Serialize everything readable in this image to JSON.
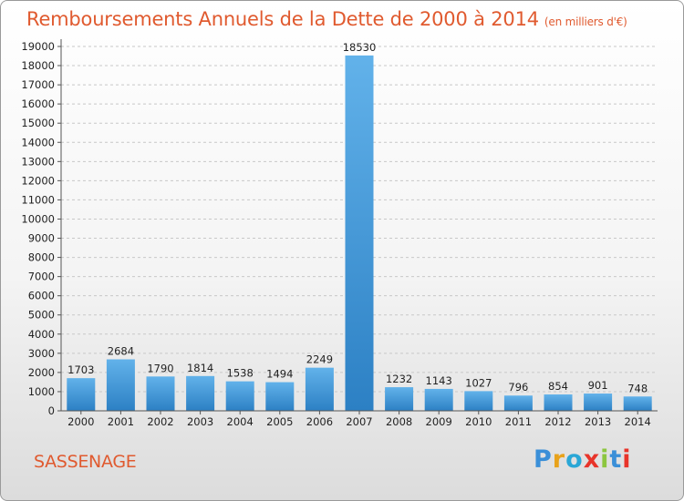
{
  "title": "Remboursements Annuels de la Dette de 2000 à 2014",
  "subtitle": "(en milliers d'€)",
  "commune": "SASSENAGE",
  "brand": {
    "text": "Proxiti",
    "letter_colors": [
      "#3a8fd8",
      "#e8a21b",
      "#2aa7d6",
      "#e8342a",
      "#8cc63f",
      "#3a8fd8",
      "#e8342a"
    ]
  },
  "colors": {
    "bar_light": "#62b2ea",
    "bar_dark": "#2c80c4",
    "title": "#e05a2f",
    "grid": "#c8c8c8"
  },
  "chart_data": {
    "type": "bar",
    "title": "Remboursements Annuels de la Dette de 2000 à 2014",
    "subtitle": "(en milliers d'€)",
    "categories": [
      "2000",
      "2001",
      "2002",
      "2003",
      "2004",
      "2005",
      "2006",
      "2007",
      "2008",
      "2009",
      "2010",
      "2011",
      "2012",
      "2013",
      "2014"
    ],
    "values": [
      1703,
      2684,
      1790,
      1814,
      1538,
      1494,
      2249,
      18530,
      1232,
      1143,
      1027,
      796,
      854,
      901,
      748
    ],
    "ylim": [
      0,
      19000
    ],
    "yticks": [
      0,
      1000,
      2000,
      3000,
      4000,
      5000,
      6000,
      7000,
      8000,
      9000,
      10000,
      11000,
      12000,
      13000,
      14000,
      15000,
      16000,
      17000,
      18000,
      19000
    ],
    "grid": true,
    "grid_style": "dashed horizontal"
  }
}
